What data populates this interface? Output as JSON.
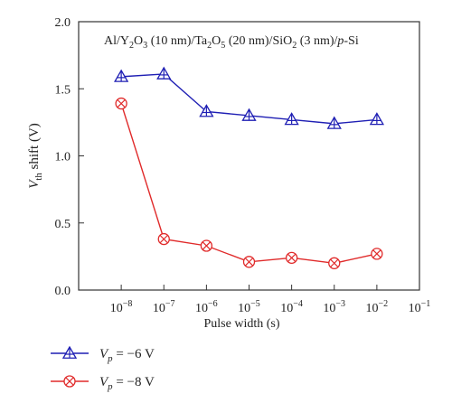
{
  "chart_data": {
    "type": "line",
    "title": "",
    "annotation": {
      "parts": [
        {
          "t": "Al/Y"
        },
        {
          "t": "2",
          "sub": true
        },
        {
          "t": "O"
        },
        {
          "t": "3",
          "sub": true
        },
        {
          "t": " (10 nm)/Ta"
        },
        {
          "t": "2",
          "sub": true
        },
        {
          "t": "O"
        },
        {
          "t": "5",
          "sub": true
        },
        {
          "t": " (20 nm)/SiO"
        },
        {
          "t": "2",
          "sub": true
        },
        {
          "t": " (3 nm)/"
        },
        {
          "t": "p",
          "italic": true
        },
        {
          "t": "-Si"
        }
      ]
    },
    "xlabel": "Pulse width (s)",
    "ylabel": {
      "parts": [
        {
          "t": "V",
          "italic": true
        },
        {
          "t": "th",
          "sub": true
        },
        {
          "t": " shift (V)"
        }
      ]
    },
    "xscale": "log",
    "xlim": [
      1e-09,
      0.1
    ],
    "ylim": [
      0.0,
      2.0
    ],
    "x_ticks": [
      1e-08,
      1e-07,
      1e-06,
      1e-05,
      0.0001,
      0.001,
      0.01,
      0.1
    ],
    "x_tick_labels": [
      {
        "base": "10",
        "exp": "−8"
      },
      {
        "base": "10",
        "exp": "−7"
      },
      {
        "base": "10",
        "exp": "−6"
      },
      {
        "base": "10",
        "exp": "−5"
      },
      {
        "base": "10",
        "exp": "−4"
      },
      {
        "base": "10",
        "exp": "−3"
      },
      {
        "base": "10",
        "exp": "−2"
      },
      {
        "base": "10",
        "exp": "−1"
      }
    ],
    "y_ticks": [
      0.0,
      0.5,
      1.0,
      1.5,
      2.0
    ],
    "y_tick_labels": [
      "0.0",
      "0.5",
      "1.0",
      "1.5",
      "2.0"
    ],
    "grid": false,
    "legend_position": "bottom-left, below plot",
    "x": [
      1e-08,
      1e-07,
      1e-06,
      1e-05,
      0.0001,
      0.001,
      0.01
    ],
    "series": [
      {
        "name": {
          "parts": [
            {
              "t": "V",
              "italic": true
            },
            {
              "t": "p",
              "sub": true,
              "italic": true
            },
            {
              "t": " = −6 V"
            }
          ]
        },
        "values": [
          1.59,
          1.61,
          1.33,
          1.3,
          1.27,
          1.24,
          1.27
        ],
        "color": "#1f1fb4",
        "marker": "triangle-plus"
      },
      {
        "name": {
          "parts": [
            {
              "t": "V",
              "italic": true
            },
            {
              "t": "p",
              "sub": true,
              "italic": true
            },
            {
              "t": " = −8 V"
            }
          ]
        },
        "values": [
          1.39,
          0.38,
          0.33,
          0.21,
          0.24,
          0.2,
          0.27
        ],
        "color": "#e02a2a",
        "marker": "circle-x"
      }
    ]
  }
}
